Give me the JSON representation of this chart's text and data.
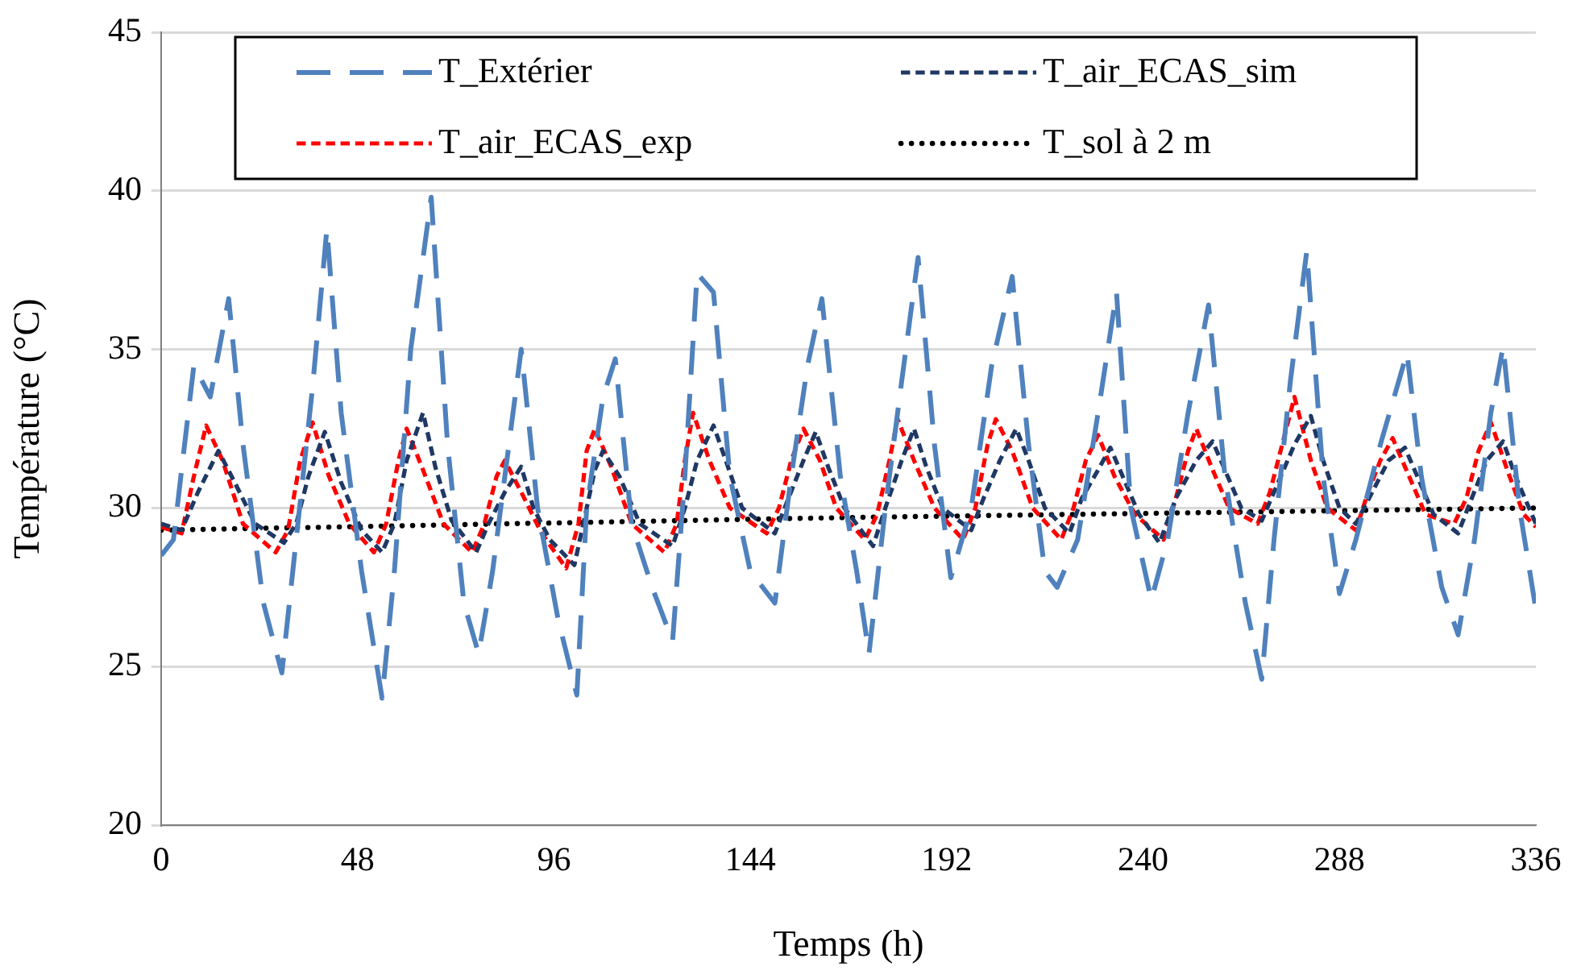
{
  "chart_data": {
    "type": "line",
    "xlabel": "Temps (h)",
    "ylabel": "Température (°C)",
    "xlim": [
      0,
      336
    ],
    "xticks": [
      0,
      48,
      96,
      144,
      192,
      240,
      288,
      336
    ],
    "ylim": [
      20,
      45
    ],
    "yticks": [
      20,
      25,
      30,
      35,
      40,
      45
    ],
    "grid": "y",
    "legend": "top",
    "marker": "none",
    "series": [
      {
        "name": "T_Extérier",
        "color": "#4f81bd",
        "line_style": "dashed",
        "x": [
          0,
          3,
          8,
          12,
          16.5,
          20,
          25,
          29.5,
          33,
          37,
          40.5,
          44,
          49,
          54,
          57,
          61,
          66,
          70,
          74,
          77.6,
          81,
          85,
          88,
          92,
          97,
          101.6,
          104,
          108,
          111,
          115,
          120,
          125,
          128,
          131,
          135,
          139,
          144,
          150,
          154,
          158,
          161.5,
          166,
          170,
          173,
          177,
          181,
          185,
          189,
          193,
          198,
          203,
          208,
          212,
          216,
          219,
          224,
          229,
          233.5,
          237,
          242,
          246,
          251,
          256,
          260,
          265,
          269,
          272,
          276,
          280,
          284,
          288,
          292,
          298,
          304.5,
          308,
          313,
          317,
          321,
          325,
          328,
          332,
          336
        ],
        "values": [
          28.5,
          29,
          34.5,
          33.5,
          36.6,
          32,
          27,
          24.8,
          29,
          33.8,
          38.8,
          33,
          28,
          24,
          28,
          35,
          39.8,
          32,
          27,
          25.4,
          28,
          32,
          35,
          30,
          26.5,
          24.1,
          30,
          33.5,
          34.7,
          29.5,
          27.5,
          25.8,
          31,
          37.4,
          36.8,
          31,
          28,
          27,
          31,
          34.5,
          36.6,
          31,
          28,
          25.4,
          30,
          34,
          37.9,
          32,
          27.8,
          30,
          34.5,
          37.3,
          32,
          28,
          27.5,
          29,
          33,
          36.8,
          30,
          27.1,
          29,
          33,
          36.4,
          31,
          27,
          24.6,
          29,
          34,
          38.1,
          31,
          27.3,
          29,
          32,
          34.9,
          31,
          27.5,
          26,
          29,
          33,
          35.1,
          30,
          26.8
        ]
      },
      {
        "name": "T_air_ECAS_sim",
        "color": "#1f3864",
        "line_style": "dashed",
        "x": [
          0,
          5,
          9,
          14,
          18,
          23,
          30,
          33,
          36,
          40,
          44,
          49,
          54,
          57,
          60,
          64,
          67,
          71,
          77,
          80,
          84,
          88,
          91,
          95,
          101,
          104,
          106,
          108,
          112,
          117,
          125,
          128,
          131,
          135,
          138,
          142,
          150,
          153,
          157,
          160,
          163,
          167,
          174,
          177,
          181,
          184,
          187,
          191,
          198,
          201,
          205,
          209,
          212,
          216,
          222,
          225,
          229,
          232,
          235,
          239,
          244,
          248,
          253,
          257,
          260,
          264,
          269,
          272,
          277,
          281,
          284,
          288,
          292,
          296,
          300,
          304,
          307,
          311,
          317,
          320,
          324,
          328,
          331,
          336
        ],
        "values": [
          29.5,
          29.3,
          30.5,
          31.8,
          30.8,
          29.5,
          28.9,
          29.5,
          31,
          32.4,
          30.8,
          29.3,
          28.6,
          29.5,
          31.5,
          33,
          31.3,
          29.6,
          28.6,
          29.5,
          30.5,
          31.3,
          30,
          29,
          28.2,
          30,
          31.2,
          31.8,
          31,
          29.5,
          28.8,
          30,
          31.5,
          32.6,
          31.5,
          30,
          29.2,
          30.2,
          31.5,
          32.4,
          31.3,
          30,
          28.8,
          30,
          31.5,
          32.5,
          31.3,
          30,
          29.3,
          30.3,
          31.5,
          32.5,
          31.5,
          30,
          29.2,
          30.3,
          31.2,
          31.9,
          31,
          29.8,
          28.9,
          30.3,
          31.5,
          32.1,
          31.2,
          30,
          29.6,
          30.5,
          32,
          32.9,
          31.5,
          30,
          29.5,
          30.5,
          31.5,
          31.9,
          31,
          29.8,
          29.2,
          30.2,
          31.5,
          32.1,
          31,
          29.5
        ]
      },
      {
        "name": "T_air_ECAS_exp",
        "color": "#ff0000",
        "line_style": "dashed",
        "x": [
          0,
          5,
          8,
          11,
          15,
          20,
          28,
          31,
          34,
          37,
          41,
          46,
          52,
          55,
          58,
          60,
          64,
          69,
          76,
          79,
          82,
          84,
          88,
          93,
          99,
          102,
          104,
          106,
          110,
          115,
          123,
          126,
          128,
          130,
          134,
          139,
          148,
          151,
          154,
          157,
          161,
          165,
          172,
          175,
          178,
          180,
          184,
          189,
          196,
          199,
          202,
          204,
          208,
          213,
          220,
          223,
          226,
          229,
          233,
          238,
          245,
          248,
          251,
          253,
          257,
          261,
          268,
          271,
          274,
          277,
          281,
          285,
          292,
          295,
          298,
          301,
          305,
          309,
          316,
          319,
          322,
          325,
          329,
          333,
          336
        ],
        "values": [
          29.4,
          29.2,
          31,
          32.6,
          31.5,
          29.5,
          28.6,
          29.3,
          31.5,
          32.7,
          31,
          29.5,
          28.6,
          29.5,
          31.5,
          32.5,
          31.2,
          29.5,
          28.6,
          29.5,
          31,
          31.5,
          30.5,
          29.2,
          28.1,
          29.5,
          31.8,
          32.5,
          31.3,
          29.5,
          28.6,
          29.5,
          31.5,
          33,
          31.5,
          30,
          29.2,
          30,
          31.5,
          32.5,
          31.5,
          30,
          29,
          29.8,
          31.5,
          32.8,
          31.5,
          30,
          29,
          30,
          32,
          32.8,
          31.8,
          30,
          29,
          30,
          31.5,
          32.3,
          31,
          29.8,
          29,
          30.3,
          31.8,
          32.5,
          31.2,
          30,
          29.5,
          30.5,
          32,
          33.5,
          31.5,
          30,
          29.3,
          30.5,
          31.5,
          32.2,
          31,
          29.8,
          29.5,
          30.3,
          31.8,
          32.7,
          31.2,
          29.8,
          29.4
        ]
      },
      {
        "name": "T_sol à 2 m",
        "color": "#000000",
        "line_style": "dotted",
        "x": [
          0,
          168,
          336
        ],
        "values": [
          29.3,
          29.7,
          30
        ]
      }
    ]
  }
}
